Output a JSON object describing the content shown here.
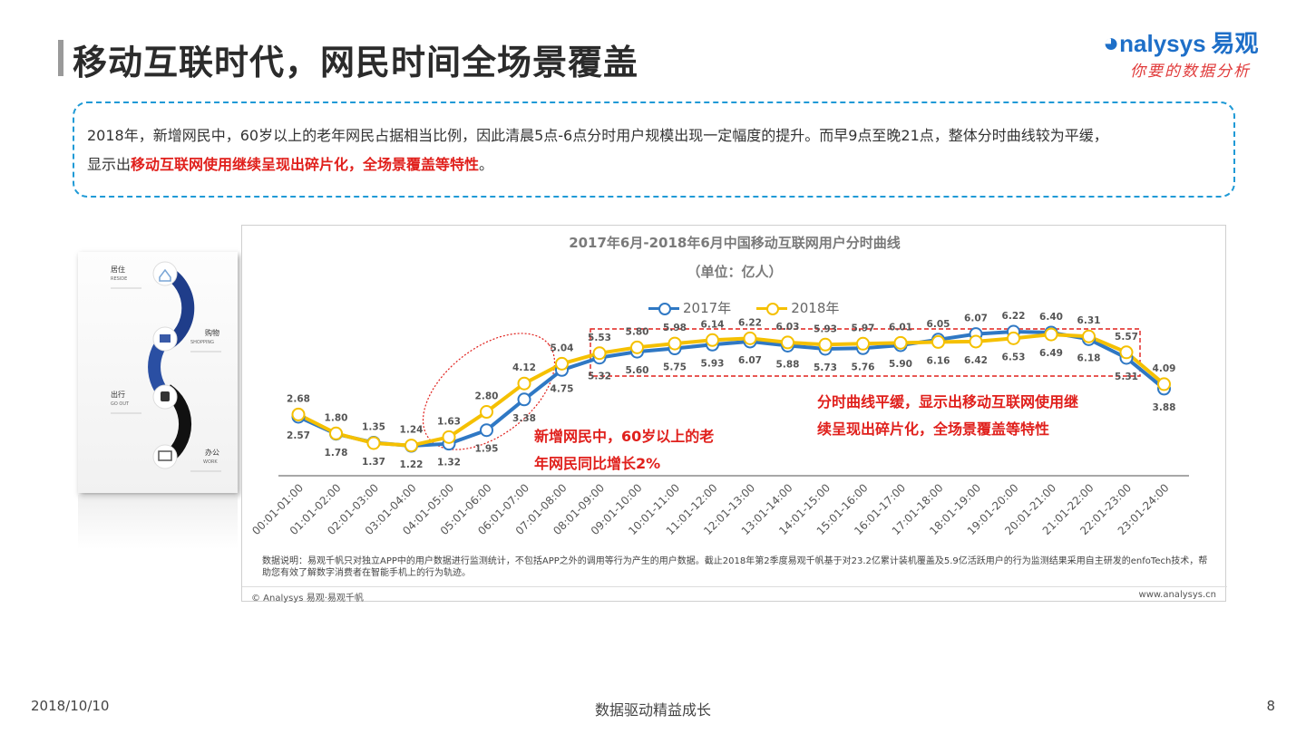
{
  "header": {
    "title": "移动互联时代，网民时间全场景覆盖"
  },
  "logo": {
    "brand_en": "nalysys",
    "brand_cn": "易观",
    "slogan": "你要的数据分析"
  },
  "summary": {
    "text_part1": "2018年，新增网民中，60岁以上的老年网民占据相当比例，因此清晨5点-6点分时用户规模出现一定幅度的提升。而早9点至晚21点，整体分时曲线较为平缓，",
    "text_part2": "显示出",
    "highlight": "移动互联网使用继续呈现出碎片化，全场景覆盖等特性",
    "text_end": "。"
  },
  "side_card": {
    "items": [
      {
        "cn": "居住",
        "en": "RESIDE",
        "icon": "house-icon"
      },
      {
        "cn": "购物",
        "en": "SHOPPING",
        "icon": "cart-icon"
      },
      {
        "cn": "出行",
        "en": "GO OUT",
        "icon": "train-icon"
      },
      {
        "cn": "办公",
        "en": "WORK",
        "icon": "monitor-icon"
      }
    ]
  },
  "chart_data": {
    "type": "line",
    "title": "2017年6月-2018年6月中国移动互联网用户分时曲线",
    "unit": "（单位：亿人）",
    "categories": [
      "00:01-01:00",
      "01:01-02:00",
      "02:01-03:00",
      "03:01-04:00",
      "04:01-05:00",
      "05:01-06:00",
      "06:01-07:00",
      "07:01-08:00",
      "08:01-09:00",
      "09:01-10:00",
      "10:01-11:00",
      "11:01-12:00",
      "12:01-13:00",
      "13:01-14:00",
      "14:01-15:00",
      "15:01-16:00",
      "16:01-17:00",
      "17:01-18:00",
      "18:01-19:00",
      "19:01-20:00",
      "20:01-21:00",
      "21:01-22:00",
      "22:01-23:00",
      "23:01-24:00"
    ],
    "series": [
      {
        "name": "2017年",
        "color": "#2f78c4",
        "values": [
          2.57,
          1.78,
          1.37,
          1.22,
          1.32,
          1.95,
          3.38,
          4.75,
          5.32,
          5.6,
          5.75,
          5.93,
          6.07,
          5.88,
          5.73,
          5.76,
          5.9,
          6.16,
          6.42,
          6.53,
          6.49,
          6.18,
          5.31,
          3.88
        ]
      },
      {
        "name": "2018年",
        "color": "#f5c000",
        "values": [
          2.68,
          1.8,
          1.35,
          1.24,
          1.63,
          2.8,
          4.12,
          5.04,
          5.53,
          5.8,
          5.98,
          6.14,
          6.22,
          6.03,
          5.93,
          5.97,
          6.01,
          6.05,
          6.07,
          6.22,
          6.4,
          6.31,
          5.57,
          4.09
        ]
      }
    ],
    "ylim": [
      0,
      7.5
    ],
    "grid": false,
    "legend": "top-center",
    "annotations": [
      "新增网民中，60岁以上的老年网民同比增长2%",
      "分时曲线平缓，显示出移动互联网使用继续呈现出碎片化，全场景覆盖等特性"
    ]
  },
  "annotation1": {
    "line1": "新增网民中，60岁以上的老",
    "line2": "年网民同比增长2%"
  },
  "annotation2": {
    "line1": "分时曲线平缓，显示出移动互联网使用继",
    "line2": "续呈现出碎片化，全场景覆盖等特性"
  },
  "footnote": "数据说明：易观千帆只对独立APP中的用户数据进行监测统计，不包括APP之外的调用等行为产生的用户数据。截止2018年第2季度易观千帆基于对23.2亿累计装机覆盖及5.9亿活跃用户的行为监测结果采用自主研发的enfoTech技术，帮助您有效了解数字消费者在智能手机上的行为轨迹。",
  "copyright": "© Analysys 易观·易观千帆",
  "site": "www.analysys.cn",
  "footer": {
    "date": "2018/10/10",
    "center": "数据驱动精益成长",
    "page": "8"
  },
  "colors": {
    "accent_blue": "#1f9ad6",
    "highlight_red": "#e0201c"
  }
}
